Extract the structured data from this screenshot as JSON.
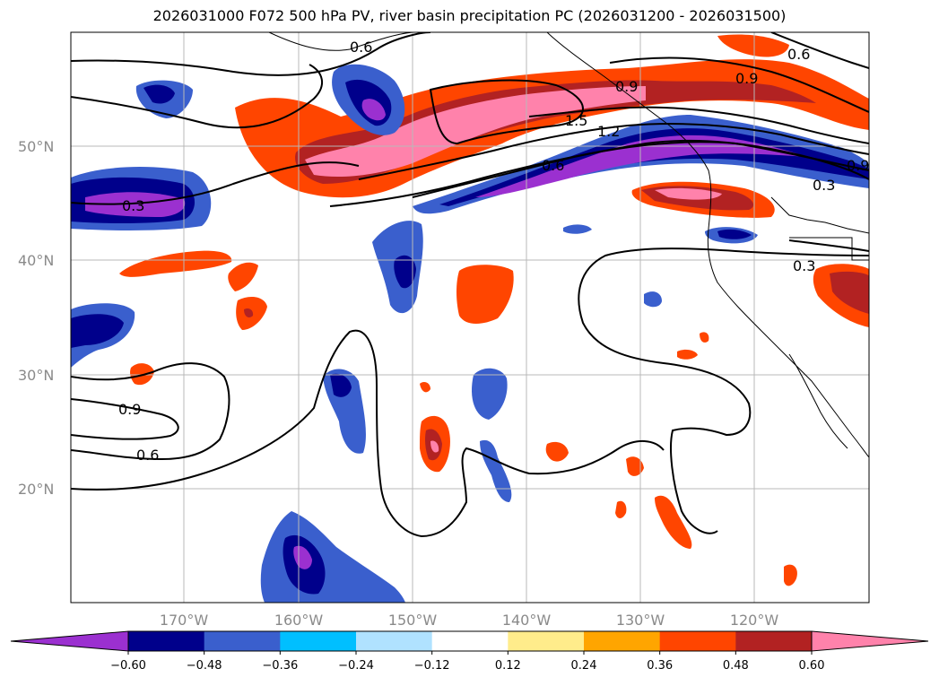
{
  "title": "2026031000 F072 500 hPa PV, river basin precipitation PC (2026031200 - 2026031500)",
  "lat_labels": [
    "50°N",
    "40°N",
    "30°N",
    "20°N"
  ],
  "lon_labels": [
    "170°W",
    "160°W",
    "150°W",
    "140°W",
    "130°W",
    "120°W"
  ],
  "contour_labels": [
    "0.3",
    "0.6",
    "0.9",
    "1.2",
    "1.5",
    "0.9",
    "0.6",
    "0.3",
    "0.3",
    "0.9",
    "0.6",
    "0.9",
    "0.6"
  ],
  "colorbar": {
    "colors": [
      "#9b30d0",
      "#00008b",
      "#3a5fcd",
      "#00bfff",
      "#b0e2ff",
      "#ffffff",
      "#ffec8b",
      "#ffa500",
      "#ff4500",
      "#b22222",
      "#ff82ab"
    ],
    "tick_labels": [
      "−0.60",
      "−0.48",
      "−0.36",
      "−0.24",
      "−0.12",
      "0.12",
      "0.24",
      "0.36",
      "0.48",
      "0.60"
    ]
  }
}
